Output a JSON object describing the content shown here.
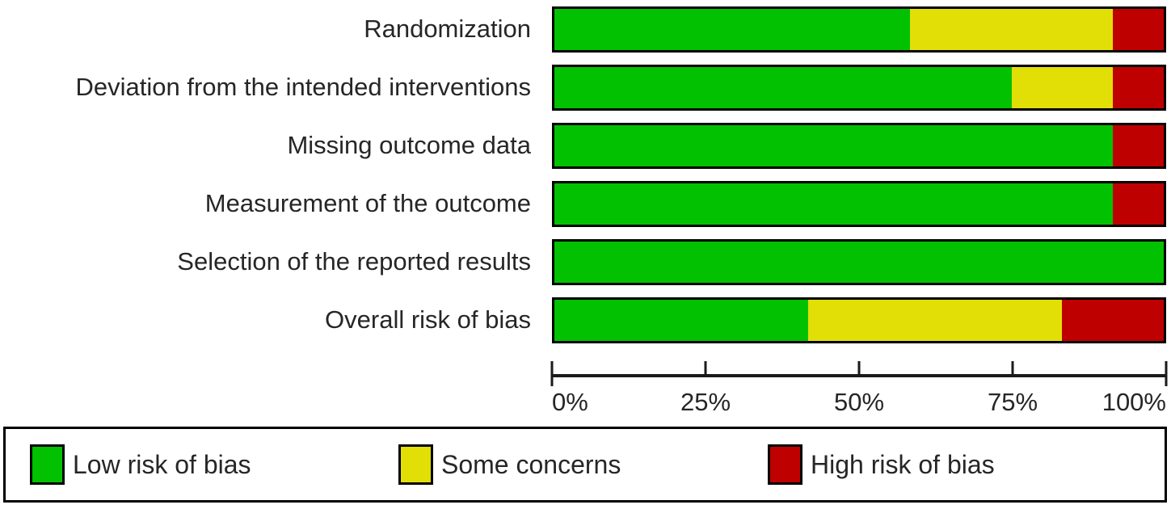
{
  "colors": {
    "low_risk": "#02C100",
    "some_concerns": "#E2DF07",
    "high_risk": "#BF0000",
    "axis": "#1A1A1A",
    "text": "#262626",
    "border": "#000000",
    "background": "#FFFFFF"
  },
  "chart_data": {
    "type": "bar",
    "variant": "horizontal-stacked",
    "title": "",
    "xlabel": "",
    "ylabel": "",
    "categories": [
      "Randomization",
      "Deviation from the intended interventions",
      "Missing outcome data",
      "Measurement of the outcome",
      "Selection of the reported results",
      "Overall risk of bias"
    ],
    "series": [
      {
        "name": "Low risk of bias",
        "key": "low_risk",
        "values": [
          58.3,
          75.0,
          91.7,
          91.7,
          100.0,
          41.7
        ]
      },
      {
        "name": "Some concerns",
        "key": "some_concerns",
        "values": [
          33.4,
          16.7,
          0.0,
          0.0,
          0.0,
          41.6
        ]
      },
      {
        "name": "High risk of bias",
        "key": "high_risk",
        "values": [
          8.3,
          8.3,
          8.3,
          8.3,
          0.0,
          16.7
        ]
      }
    ],
    "x_ticks": [
      "0%",
      "25%",
      "50%",
      "75%",
      "100%"
    ],
    "xlim": [
      0,
      100
    ],
    "grid": false,
    "legend_position": "bottom"
  },
  "legend": {
    "items": [
      {
        "label": "Low risk of bias",
        "key": "low_risk"
      },
      {
        "label": "Some concerns",
        "key": "some_concerns"
      },
      {
        "label": "High risk of bias",
        "key": "high_risk"
      }
    ]
  }
}
